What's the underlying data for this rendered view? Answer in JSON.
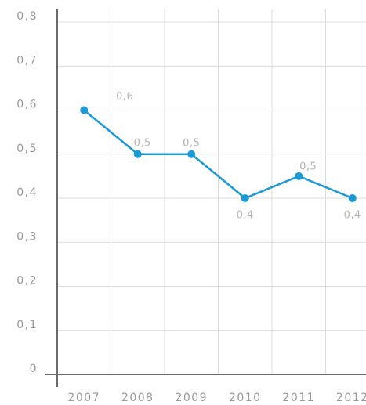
{
  "chart_data": {
    "type": "line",
    "categories": [
      "2007",
      "2008",
      "2009",
      "2010",
      "2011",
      "2012"
    ],
    "series": [
      {
        "color": "#1a9ad6",
        "values": [
          0.6,
          0.5,
          0.5,
          0.4,
          0.45,
          0.4
        ],
        "value_labels": [
          "0,6",
          "0,5",
          "0,5",
          "0,4",
          "0,5",
          "0,4"
        ]
      }
    ],
    "ylim": [
      0,
      0.8
    ],
    "yticks": [
      0,
      {
        "value": 0.1,
        "label": "0,1"
      },
      {
        "value": 0.2,
        "label": "0,2"
      },
      {
        "value": 0.3,
        "label": "0,3"
      },
      {
        "value": 0.4,
        "label": "0,4"
      },
      {
        "value": 0.5,
        "label": "0,5"
      },
      {
        "value": 0.6,
        "label": "0,6"
      },
      {
        "value": 0.7,
        "label": "0,7"
      },
      {
        "value": 0.8,
        "label": "0,8"
      }
    ],
    "grid": true
  }
}
